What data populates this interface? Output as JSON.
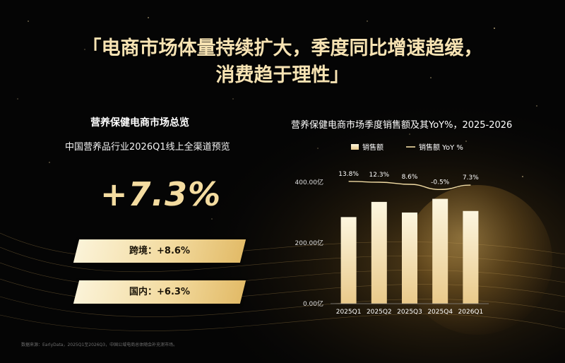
{
  "title": {
    "line1": "「电商市场体量持续扩大，季度同比增速趋缓，",
    "line2": "消费趋于理性」"
  },
  "overview": {
    "heading": "营养保健电商市场总览",
    "subheading": "中国营养品行业2026Q1线上全渠道预览",
    "big_value": "+7.3%",
    "cross_border_label": "跨境：+8.6%",
    "domestic_label": "国内：+6.3%"
  },
  "source_note": "数据来源：EarlyData，2025Q1至2026Q3，中国公域电商总体随会补充测市场。",
  "colors": {
    "title_gold": "#f7e3b3",
    "accent_gold": "#f4dca0",
    "bar_top": "#fdf6df",
    "bar_bottom": "#e9c98a"
  },
  "chart_data": {
    "type": "bar",
    "title": "营养保健电商市场季度销售额及其YoY%，2025-2026",
    "categories": [
      "2025Q1",
      "2025Q2",
      "2025Q3",
      "2025Q4",
      "2026Q1"
    ],
    "series": [
      {
        "name": "销售额",
        "type": "bar",
        "unit": "亿",
        "values": [
          285,
          335,
          300,
          345,
          305
        ]
      },
      {
        "name": "销售额 YoY %",
        "type": "line",
        "unit": "%",
        "values": [
          13.8,
          12.3,
          8.6,
          -0.5,
          7.3
        ],
        "labels": [
          "13.8%",
          "12.3%",
          "8.6%",
          "-0.5%",
          "7.3%"
        ]
      }
    ],
    "y_ticks": [
      "0.00亿",
      "200.00亿",
      "400.00亿"
    ],
    "y_tick_values": [
      0,
      200,
      400
    ],
    "ylim": [
      0,
      430
    ],
    "grid": false,
    "legend_position": "top"
  }
}
